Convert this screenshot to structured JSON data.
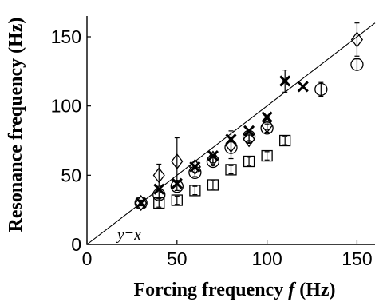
{
  "chart_data": {
    "type": "scatter",
    "xlabel_main": "Forcing frequency ",
    "xlabel_var": "f",
    "xlabel_unit": " (Hz)",
    "ylabel": "Resonance frequency (Hz)",
    "xlim": [
      0,
      160
    ],
    "ylim": [
      0,
      165
    ],
    "xticks": [
      0,
      50,
      100,
      150
    ],
    "yticks": [
      0,
      50,
      100,
      150
    ],
    "xtick_labels": [
      "0",
      "50",
      "100",
      "150"
    ],
    "ytick_labels": [
      "0",
      "50",
      "100",
      "150"
    ],
    "reference_line": {
      "label": "y=x",
      "slope": 1,
      "intercept": 0
    },
    "series": [
      {
        "marker": "diamond",
        "points": [
          {
            "x": 30,
            "y": 30,
            "err": 2
          },
          {
            "x": 40,
            "y": 50,
            "err": 8
          },
          {
            "x": 50,
            "y": 60,
            "err": 17
          },
          {
            "x": 60,
            "y": 56,
            "err": 4
          },
          {
            "x": 70,
            "y": 62,
            "err": 3
          },
          {
            "x": 80,
            "y": 72,
            "err": 10
          },
          {
            "x": 90,
            "y": 76,
            "err": 3
          },
          {
            "x": 100,
            "y": 86,
            "err": 3
          },
          {
            "x": 150,
            "y": 148,
            "err": 12
          }
        ]
      },
      {
        "marker": "x",
        "points": [
          {
            "x": 30,
            "y": 30,
            "err": 0
          },
          {
            "x": 40,
            "y": 40,
            "err": 0
          },
          {
            "x": 50,
            "y": 44,
            "err": 0
          },
          {
            "x": 60,
            "y": 56,
            "err": 0
          },
          {
            "x": 70,
            "y": 64,
            "err": 0
          },
          {
            "x": 80,
            "y": 76,
            "err": 0
          },
          {
            "x": 90,
            "y": 82,
            "err": 0
          },
          {
            "x": 100,
            "y": 92,
            "err": 0
          },
          {
            "x": 110,
            "y": 118,
            "err": 8
          },
          {
            "x": 120,
            "y": 114,
            "err": 0
          }
        ]
      },
      {
        "marker": "circle",
        "points": [
          {
            "x": 30,
            "y": 30,
            "err": 2
          },
          {
            "x": 40,
            "y": 36,
            "err": 3
          },
          {
            "x": 50,
            "y": 42,
            "err": 3
          },
          {
            "x": 60,
            "y": 52,
            "err": 3
          },
          {
            "x": 70,
            "y": 60,
            "err": 3
          },
          {
            "x": 80,
            "y": 70,
            "err": 4
          },
          {
            "x": 90,
            "y": 78,
            "err": 3
          },
          {
            "x": 100,
            "y": 84,
            "err": 3
          },
          {
            "x": 130,
            "y": 112,
            "err": 5
          },
          {
            "x": 150,
            "y": 130,
            "err": 4
          }
        ]
      },
      {
        "marker": "square",
        "points": [
          {
            "x": 40,
            "y": 30,
            "err": 3
          },
          {
            "x": 50,
            "y": 32,
            "err": 3
          },
          {
            "x": 60,
            "y": 39,
            "err": 3
          },
          {
            "x": 70,
            "y": 43,
            "err": 3
          },
          {
            "x": 80,
            "y": 54,
            "err": 3
          },
          {
            "x": 90,
            "y": 60,
            "err": 3
          },
          {
            "x": 100,
            "y": 64,
            "err": 3
          },
          {
            "x": 110,
            "y": 75,
            "err": 3
          }
        ]
      }
    ],
    "grid": false,
    "legend": "none"
  }
}
